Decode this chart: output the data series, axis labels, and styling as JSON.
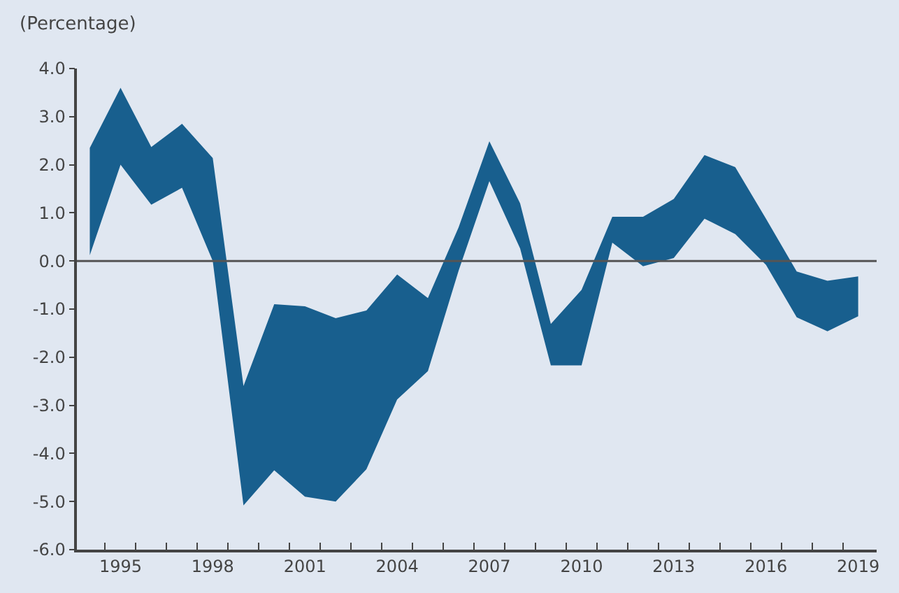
{
  "chart_data": {
    "type": "area",
    "ylabel": "(Percentage)",
    "x": [
      1994,
      1995,
      1996,
      1997,
      1998,
      1999,
      2000,
      2001,
      2002,
      2003,
      2004,
      2005,
      2006,
      2007,
      2008,
      2009,
      2010,
      2011,
      2012,
      2013,
      2014,
      2015,
      2016,
      2017,
      2018,
      2019
    ],
    "series": [
      {
        "color": "#185f8e",
        "values": [
          null,
          null,
          null,
          null,
          null,
          null,
          null,
          null,
          null,
          null,
          null,
          null,
          null,
          null,
          null,
          null,
          null,
          null,
          null,
          null,
          null,
          null,
          null,
          null,
          null,
          null
        ],
        "lower": [
          0.12,
          2.0,
          1.17,
          1.52,
          0.0,
          -5.08,
          -4.35,
          -4.9,
          -5.0,
          -4.33,
          -2.88,
          -2.29,
          -0.2,
          1.66,
          0.26,
          -2.17,
          -2.17,
          0.38,
          -0.11,
          0.06,
          0.88,
          0.56,
          -0.08,
          -1.17,
          -1.46,
          -1.15
        ],
        "upper": [
          2.35,
          3.6,
          2.37,
          2.85,
          2.14,
          -2.6,
          -0.9,
          -0.94,
          -1.19,
          -1.03,
          -0.28,
          -0.77,
          0.7,
          2.49,
          1.2,
          -1.31,
          -0.6,
          0.92,
          0.92,
          1.29,
          2.2,
          1.95,
          0.88,
          -0.22,
          -0.41,
          -0.32
        ]
      }
    ],
    "xlim": [
      1993.58,
      2019.6
    ],
    "xticks": [
      {
        "value": 1995,
        "label": "1995"
      },
      {
        "value": 1998,
        "label": "1998"
      },
      {
        "value": 2001,
        "label": "2001"
      },
      {
        "value": 2004,
        "label": "2004"
      },
      {
        "value": 2007,
        "label": "2007"
      },
      {
        "value": 2010,
        "label": "2010"
      },
      {
        "value": 2013,
        "label": "2013"
      },
      {
        "value": 2016,
        "label": "2016"
      },
      {
        "value": 2019,
        "label": "2019"
      },
      {
        "value": 1994.5,
        "label": null
      },
      {
        "value": 1995.5,
        "label": null
      },
      {
        "value": 1996.5,
        "label": null
      },
      {
        "value": 1997.5,
        "label": null
      },
      {
        "value": 1998.5,
        "label": null
      },
      {
        "value": 1999.5,
        "label": null
      },
      {
        "value": 2000.5,
        "label": null
      },
      {
        "value": 2001.5,
        "label": null
      },
      {
        "value": 2002.5,
        "label": null
      },
      {
        "value": 2003.5,
        "label": null
      },
      {
        "value": 2004.5,
        "label": null
      },
      {
        "value": 2005.5,
        "label": null
      },
      {
        "value": 2006.5,
        "label": null
      },
      {
        "value": 2007.5,
        "label": null
      },
      {
        "value": 2008.5,
        "label": null
      },
      {
        "value": 2009.5,
        "label": null
      },
      {
        "value": 2010.5,
        "label": null
      },
      {
        "value": 2011.5,
        "label": null
      },
      {
        "value": 2012.5,
        "label": null
      },
      {
        "value": 2013.5,
        "label": null
      },
      {
        "value": 2014.5,
        "label": null
      },
      {
        "value": 2015.5,
        "label": null
      },
      {
        "value": 2016.5,
        "label": null
      },
      {
        "value": 2017.5,
        "label": null
      },
      {
        "value": 2018.5,
        "label": null
      }
    ],
    "ylim": [
      -6,
      4
    ],
    "yticks": [
      {
        "value": 4,
        "label": "4.0"
      },
      {
        "value": 3,
        "label": "3.0"
      },
      {
        "value": 2,
        "label": "2.0"
      },
      {
        "value": 1,
        "label": "1.0"
      },
      {
        "value": 0,
        "label": "0.0"
      },
      {
        "value": -1,
        "label": "-1.0"
      },
      {
        "value": -2,
        "label": "-2.0"
      },
      {
        "value": -3,
        "label": "-3.0"
      },
      {
        "value": -4,
        "label": "-4.0"
      },
      {
        "value": -5,
        "label": "-5.0"
      },
      {
        "value": -6,
        "label": "-6.0"
      }
    ],
    "ref_lines": [
      {
        "axis": "y",
        "value": 0,
        "color": "#555555"
      }
    ]
  }
}
